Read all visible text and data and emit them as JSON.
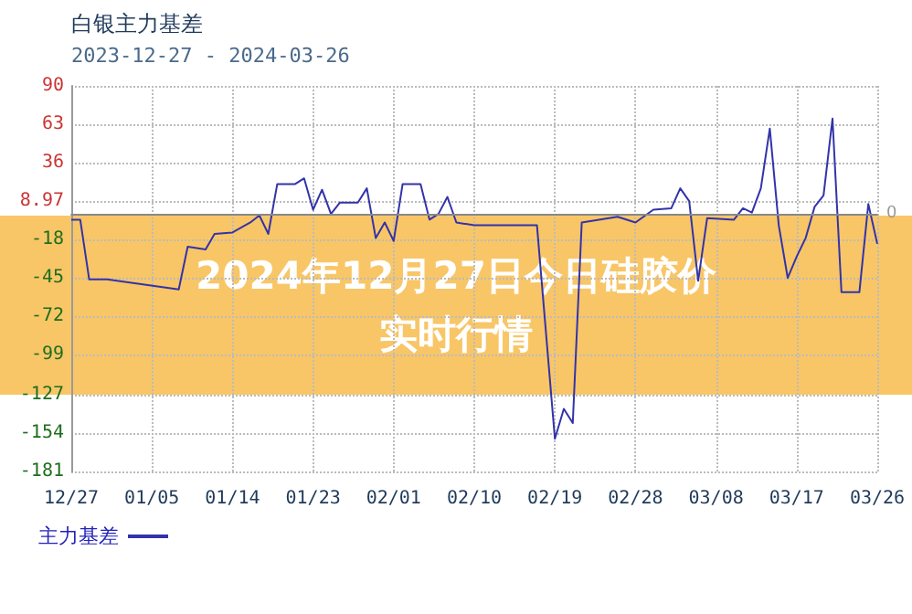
{
  "chart_data": {
    "type": "line",
    "title": "白银主力基差",
    "subtitle": "2023-12-27 - 2024-03-26",
    "annotations": [
      "2024年12月27日今日硅胶价实时行情"
    ],
    "x": [
      "2023-12-27",
      "2023-12-28",
      "2023-12-29",
      "2023-12-31",
      "2024-01-08",
      "2024-01-09",
      "2024-01-11",
      "2024-01-12",
      "2024-01-14",
      "2024-01-16",
      "2024-01-17",
      "2024-01-18",
      "2024-01-19",
      "2024-01-21",
      "2024-01-22",
      "2024-01-23",
      "2024-01-24",
      "2024-01-25",
      "2024-01-26",
      "2024-01-28",
      "2024-01-29",
      "2024-01-30",
      "2024-01-31",
      "2024-02-01",
      "2024-02-02",
      "2024-02-04",
      "2024-02-05",
      "2024-02-06",
      "2024-02-07",
      "2024-02-08",
      "2024-02-10",
      "2024-02-17",
      "2024-02-19",
      "2024-02-20",
      "2024-02-21",
      "2024-02-22",
      "2024-02-26",
      "2024-02-28",
      "2024-03-01",
      "2024-03-03",
      "2024-03-04",
      "2024-03-05",
      "2024-03-06",
      "2024-03-07",
      "2024-03-10",
      "2024-03-11",
      "2024-03-12",
      "2024-03-13",
      "2024-03-14",
      "2024-03-15",
      "2024-03-16",
      "2024-03-17",
      "2024-03-18",
      "2024-03-19",
      "2024-03-20",
      "2024-03-21",
      "2024-03-22",
      "2024-03-24",
      "2024-03-25",
      "2024-03-26"
    ],
    "series": [
      {
        "name": "主力基差",
        "color": "#3333aa",
        "values": [
          -4,
          -4,
          -46,
          -46,
          -53,
          -23,
          -25,
          -14,
          -13,
          -6,
          -1,
          -14,
          21,
          21,
          25,
          3,
          17,
          0,
          8,
          8,
          18,
          -17,
          -6,
          -19,
          21,
          21,
          -4,
          0,
          12,
          -6,
          -8,
          -8,
          -158,
          -137,
          -147,
          -6,
          -2,
          -6,
          3,
          4,
          18,
          9,
          -47,
          -3,
          -4,
          4,
          1,
          18,
          60,
          -8,
          -45,
          -30,
          -17,
          5,
          13,
          67,
          -55,
          -55,
          7,
          -21
        ]
      }
    ],
    "xlim": [
      "2023-12-27",
      "2024-03-26"
    ],
    "xticks": [
      {
        "value": "2023-12-27",
        "label": "12/27"
      },
      {
        "value": "2024-01-05",
        "label": "01/05"
      },
      {
        "value": "2024-01-14",
        "label": "01/14"
      },
      {
        "value": "2024-01-23",
        "label": "01/23"
      },
      {
        "value": "2024-02-01",
        "label": "02/01"
      },
      {
        "value": "2024-02-10",
        "label": "02/10"
      },
      {
        "value": "2024-02-19",
        "label": "02/19"
      },
      {
        "value": "2024-02-28",
        "label": "02/28"
      },
      {
        "value": "2024-03-08",
        "label": "03/08"
      },
      {
        "value": "2024-03-17",
        "label": "03/17"
      },
      {
        "value": "2024-03-26",
        "label": "03/26"
      }
    ],
    "ylim": [
      -181,
      90
    ],
    "yticks": [
      90,
      63,
      36,
      8.97,
      -18,
      -45,
      -72,
      -99,
      -127,
      -154,
      -181
    ],
    "ref_lines": [
      {
        "axis": "y",
        "value": 0,
        "label": "0",
        "color": "#888888"
      }
    ],
    "grid": true,
    "legend": "bottom left",
    "marker": "none",
    "line_style": "solid"
  }
}
